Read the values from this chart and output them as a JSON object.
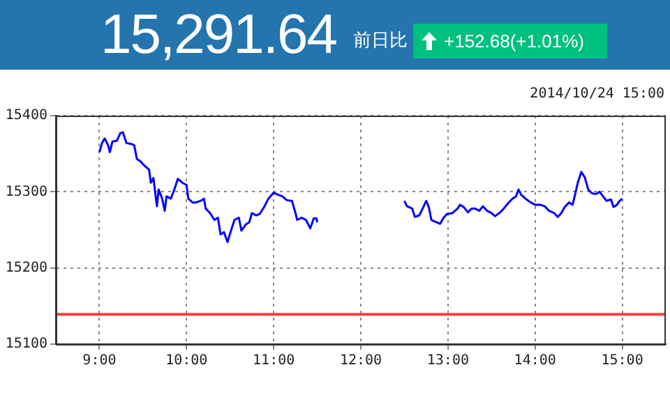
{
  "chart_data": {
    "type": "line",
    "title": "15,291.64",
    "annotations": [
      "前日比",
      "+152.68(+1.01%)",
      "2014/10/24 15:00"
    ],
    "x": [
      9.0,
      9.03,
      9.06,
      9.1,
      9.12,
      9.15,
      9.2,
      9.24,
      9.27,
      9.31,
      9.36,
      9.4,
      9.43,
      9.47,
      9.52,
      9.57,
      9.59,
      9.62,
      9.66,
      9.68,
      9.72,
      9.75,
      9.77,
      9.82,
      9.86,
      9.9,
      9.95,
      10.0,
      10.02,
      10.07,
      10.11,
      10.16,
      10.2,
      10.22,
      10.27,
      10.32,
      10.36,
      10.39,
      10.43,
      10.47,
      10.51,
      10.55,
      10.6,
      10.63,
      10.68,
      10.72,
      10.75,
      10.8,
      10.84,
      10.89,
      10.94,
      11.0,
      11.05,
      11.1,
      11.15,
      11.21,
      11.25,
      11.27,
      11.32,
      11.37,
      11.42,
      11.46,
      11.49,
      11.5,
      12.0,
      12.5,
      12.53,
      12.59,
      12.62,
      12.67,
      12.71,
      12.75,
      12.78,
      12.81,
      12.87,
      12.91,
      12.95,
      12.99,
      13.05,
      13.11,
      13.14,
      13.18,
      13.23,
      13.27,
      13.31,
      13.36,
      13.4,
      13.45,
      13.5,
      13.54,
      13.6,
      13.64,
      13.69,
      13.74,
      13.78,
      13.81,
      13.84,
      13.9,
      13.95,
      14.0,
      14.06,
      14.11,
      14.16,
      14.22,
      14.26,
      14.3,
      14.34,
      14.39,
      14.43,
      14.46,
      14.49,
      14.53,
      14.57,
      14.61,
      14.65,
      14.7,
      14.74,
      14.78,
      14.82,
      14.87,
      14.9,
      14.94,
      14.97,
      15.0
    ],
    "series": [
      {
        "color": "#0000ff",
        "values": [
          15352,
          15364,
          15370,
          15361,
          15352,
          15366,
          15367,
          15377,
          15378,
          15364,
          15363,
          15361,
          15343,
          15340,
          15334,
          15329,
          15312,
          15318,
          15281,
          15303,
          15291,
          15275,
          15294,
          15291,
          15303,
          15317,
          15312,
          15309,
          15291,
          15286,
          15286,
          15288,
          15291,
          15278,
          15272,
          15263,
          15266,
          15244,
          15247,
          15234,
          15249,
          15263,
          15266,
          15249,
          15257,
          15260,
          15272,
          15269,
          15271,
          15280,
          15291,
          15299,
          15296,
          15294,
          15289,
          15288,
          15272,
          15263,
          15266,
          15263,
          15252,
          15265,
          15265,
          15260,
          null,
          15288,
          15281,
          15278,
          15267,
          15269,
          15278,
          15288,
          15280,
          15263,
          15260,
          15258,
          15266,
          15271,
          15272,
          15278,
          15283,
          15280,
          15273,
          15278,
          15278,
          15275,
          15281,
          15275,
          15272,
          15268,
          15273,
          15278,
          15285,
          15291,
          15294,
          15303,
          15296,
          15290,
          15286,
          15283,
          15283,
          15281,
          15275,
          15272,
          15267,
          15272,
          15280,
          15286,
          15283,
          15297,
          15312,
          15326,
          15319,
          15303,
          15298,
          15297,
          15300,
          15294,
          15288,
          15290,
          15280,
          15283,
          15288,
          15291
        ]
      }
    ],
    "xlim": [
      8.5,
      15.5
    ],
    "xticks": [
      {
        "value": 9,
        "label": "9:00"
      },
      {
        "value": 10,
        "label": "10:00"
      },
      {
        "value": 11,
        "label": "11:00"
      },
      {
        "value": 12,
        "label": "12:00"
      },
      {
        "value": 13,
        "label": "13:00"
      },
      {
        "value": 14,
        "label": "14:00"
      },
      {
        "value": 15,
        "label": "15:00"
      }
    ],
    "ylim": [
      15100,
      15400
    ],
    "yticks": [
      15100,
      15200,
      15300,
      15400
    ],
    "grid": true,
    "legend": false,
    "marker": "none",
    "line_style": "solid",
    "ref_lines": [
      {
        "axis": "y",
        "value": 15139,
        "color": "#ff4040"
      }
    ]
  }
}
